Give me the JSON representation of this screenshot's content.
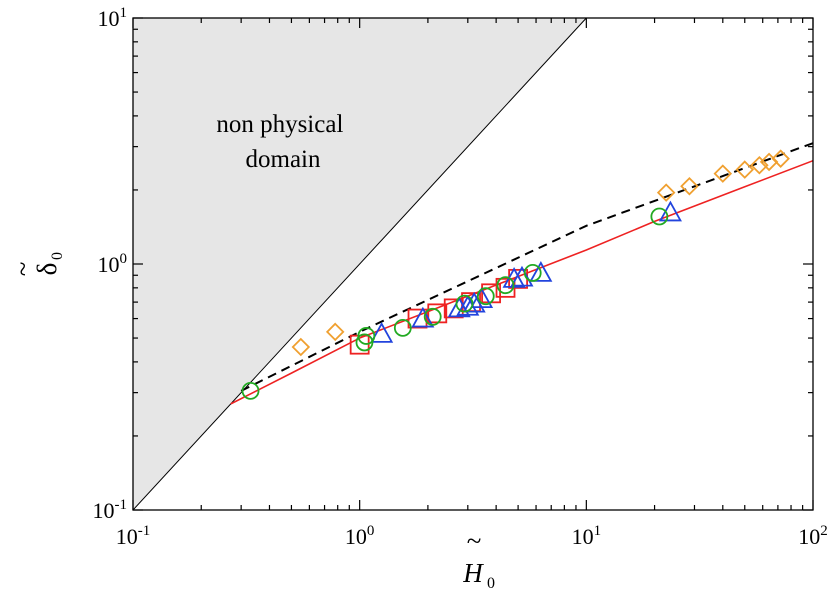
{
  "chart_data": {
    "type": "scatter",
    "xscale": "log",
    "yscale": "log",
    "xlim": [
      0.1,
      100
    ],
    "ylim": [
      0.1,
      10
    ],
    "xlabel": {
      "symbol": "H",
      "subscript": "0",
      "accent": "~"
    },
    "ylabel": {
      "symbol": "δ",
      "subscript": "0",
      "accent": "~"
    },
    "x_ticks": [
      {
        "value": 0.1,
        "base": "10",
        "exp": "-1"
      },
      {
        "value": 1,
        "base": "10",
        "exp": "0"
      },
      {
        "value": 10,
        "base": "10",
        "exp": "1"
      },
      {
        "value": 100,
        "base": "10",
        "exp": "2"
      }
    ],
    "y_ticks": [
      {
        "value": 0.1,
        "base": "10",
        "exp": "-1"
      },
      {
        "value": 1,
        "base": "10",
        "exp": "0"
      },
      {
        "value": 10,
        "base": "10",
        "exp": "1"
      }
    ],
    "grid": false,
    "region": {
      "name": "non-physical-domain",
      "boundary": "y = x",
      "label_lines": [
        "non physical",
        "domain"
      ],
      "fill": "#e6e6e6"
    },
    "lines": [
      {
        "name": "red-fit",
        "color": "#ee2222",
        "style": "solid",
        "x": [
          0.27,
          0.5,
          1,
          2,
          5,
          10,
          20,
          50,
          100
        ],
        "y": [
          0.27,
          0.36,
          0.5,
          0.64,
          0.89,
          1.14,
          1.49,
          2.06,
          2.63
        ]
      },
      {
        "name": "black-dashed-fit",
        "color": "#000000",
        "style": "dashed",
        "x": [
          0.3,
          1,
          10,
          100
        ],
        "y": [
          0.305,
          0.53,
          1.43,
          3.1
        ]
      }
    ],
    "series": [
      {
        "name": "squares",
        "marker": "square",
        "color": "#ee2222",
        "x": [
          1.0,
          1.8,
          2.2,
          2.6,
          3.1,
          3.8,
          4.4,
          5.0
        ],
        "y": [
          0.47,
          0.6,
          0.63,
          0.66,
          0.7,
          0.76,
          0.8,
          0.87
        ]
      },
      {
        "name": "triangles",
        "marker": "triangle",
        "color": "#2244dd",
        "x": [
          1.25,
          1.9,
          2.75,
          3.0,
          3.2,
          3.45,
          4.8,
          5.2,
          6.3,
          23.5
        ],
        "y": [
          0.52,
          0.6,
          0.66,
          0.67,
          0.69,
          0.72,
          0.87,
          0.88,
          0.92,
          1.62
        ]
      },
      {
        "name": "circles",
        "marker": "circle",
        "color": "#22aa22",
        "x": [
          0.33,
          1.05,
          1.07,
          1.55,
          2.1,
          2.9,
          3.6,
          4.4,
          5.8,
          21.0
        ],
        "y": [
          0.305,
          0.48,
          0.51,
          0.55,
          0.61,
          0.69,
          0.74,
          0.82,
          0.92,
          1.56
        ]
      },
      {
        "name": "diamonds",
        "marker": "diamond",
        "color": "#f0a030",
        "x": [
          0.55,
          0.78,
          22.5,
          28.5,
          40.0,
          50.0,
          58.0,
          64.0,
          72.0
        ],
        "y": [
          0.46,
          0.53,
          1.95,
          2.07,
          2.33,
          2.42,
          2.52,
          2.6,
          2.68
        ]
      }
    ]
  }
}
